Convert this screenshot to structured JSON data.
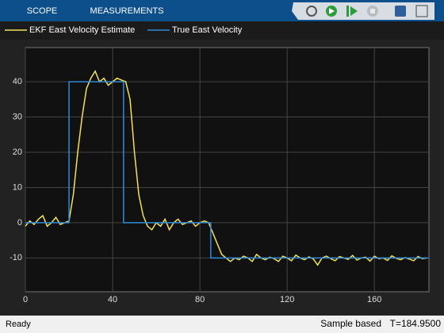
{
  "toolbar": {
    "tabs": [
      "SCOPE",
      "MEASUREMENTS"
    ]
  },
  "status_bar": {
    "left": "Ready",
    "mode": "Sample based",
    "time": "T=184.9500"
  },
  "chart_data": {
    "type": "line",
    "series": [
      {
        "name": "EKF East Velocity Estimate",
        "color": "#f2e15c",
        "x": [
          0,
          2,
          4,
          6,
          8,
          10,
          12,
          14,
          16,
          18,
          20,
          22,
          24,
          26,
          28,
          30,
          32,
          34,
          36,
          38,
          40,
          42,
          44,
          46,
          48,
          50,
          52,
          54,
          56,
          58,
          60,
          62,
          64,
          66,
          68,
          70,
          72,
          74,
          76,
          78,
          80,
          82,
          84,
          86,
          88,
          90,
          92,
          94,
          96,
          98,
          100,
          102,
          104,
          106,
          108,
          110,
          112,
          114,
          116,
          118,
          120,
          122,
          124,
          126,
          128,
          130,
          132,
          134,
          136,
          138,
          140,
          142,
          144,
          146,
          148,
          150,
          152,
          154,
          156,
          158,
          160,
          162,
          164,
          166,
          168,
          170,
          172,
          174,
          176,
          178,
          180,
          182,
          184
        ],
        "values": [
          -1,
          0.5,
          -0.5,
          1,
          2,
          -1,
          0,
          1.5,
          -0.5,
          0,
          0.5,
          8,
          20,
          30,
          38,
          41,
          43,
          40,
          41,
          39,
          40,
          41,
          40.5,
          40,
          35,
          20,
          8,
          2,
          -1,
          -2,
          0,
          -1,
          1,
          -2,
          0,
          1,
          -0.5,
          0,
          0.5,
          -1,
          0,
          0.5,
          0,
          -3,
          -6,
          -9,
          -10,
          -11,
          -10,
          -10.5,
          -9.5,
          -10,
          -11,
          -9,
          -10,
          -10.5,
          -9.8,
          -10.2,
          -11,
          -9.5,
          -10,
          -10.8,
          -9.2,
          -10,
          -10.5,
          -9.7,
          -10.3,
          -12,
          -10,
          -9.5,
          -10.2,
          -10.8,
          -9.6,
          -10,
          -10.4,
          -9.3,
          -10.6,
          -10,
          -9.8,
          -10.9,
          -9.5,
          -10.2,
          -10,
          -10.7,
          -9.4,
          -10.1,
          -10.5,
          -9.9,
          -10.3,
          -10.8,
          -9.6,
          -10.2,
          -10
        ]
      },
      {
        "name": "True East Velocity",
        "color": "#2f8ad8",
        "x": [
          0,
          20,
          20,
          45,
          45,
          85,
          85,
          185
        ],
        "values": [
          0,
          0,
          40,
          40,
          0,
          0,
          -10,
          -10
        ]
      }
    ],
    "xlim": [
      0,
      185
    ],
    "ylim": [
      -19.6,
      49.7
    ],
    "xticks": [
      0,
      40,
      80,
      120,
      160
    ],
    "yticks": [
      -10,
      0,
      10,
      20,
      30,
      40
    ],
    "grid": true
  }
}
